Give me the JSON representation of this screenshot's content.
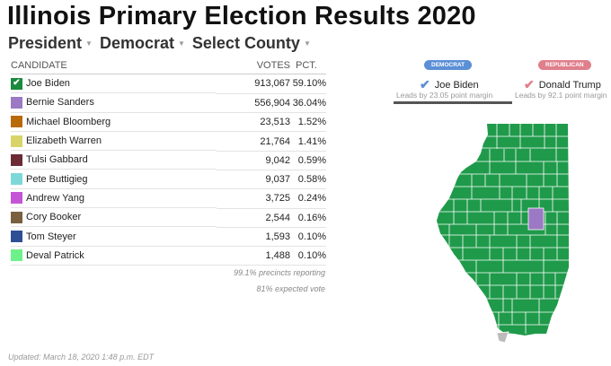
{
  "title": "Illinois Primary Election Results 2020",
  "selectors": [
    {
      "label": "President"
    },
    {
      "label": "Democrat"
    },
    {
      "label": "Select County"
    }
  ],
  "table": {
    "headers": {
      "candidate": "CANDIDATE",
      "votes": "VOTES",
      "pct": "PCT."
    },
    "rows": [
      {
        "name": "Joe Biden",
        "votes": "913,067",
        "pct": "59.10%",
        "color": "#1a8a3c",
        "winner": true
      },
      {
        "name": "Bernie Sanders",
        "votes": "556,904",
        "pct": "36.04%",
        "color": "#9b79c4"
      },
      {
        "name": "Michael Bloomberg",
        "votes": "23,513",
        "pct": "1.52%",
        "color": "#b86a0a"
      },
      {
        "name": "Elizabeth Warren",
        "votes": "21,764",
        "pct": "1.41%",
        "color": "#d8d46a"
      },
      {
        "name": "Tulsi Gabbard",
        "votes": "9,042",
        "pct": "0.59%",
        "color": "#6b2a36"
      },
      {
        "name": "Pete Buttigieg",
        "votes": "9,037",
        "pct": "0.58%",
        "color": "#7ed8d8"
      },
      {
        "name": "Andrew Yang",
        "votes": "3,725",
        "pct": "0.24%",
        "color": "#c456d6"
      },
      {
        "name": "Cory Booker",
        "votes": "2,544",
        "pct": "0.16%",
        "color": "#7b6040"
      },
      {
        "name": "Tom Steyer",
        "votes": "1,593",
        "pct": "0.10%",
        "color": "#2e4f96"
      },
      {
        "name": "Deval Patrick",
        "votes": "1,488",
        "pct": "0.10%",
        "color": "#6ef08a"
      }
    ]
  },
  "precincts": "99.1% precincts reporting",
  "expected": "81% expected vote",
  "updated": "Updated: March 18, 2020 1:48 p.m. EDT",
  "parties": {
    "democrat": {
      "badge": "DEMOCRAT",
      "leader": "Joe Biden",
      "margin": "Leads by 23.05 point margin",
      "color": "#5b8fd6"
    },
    "republican": {
      "badge": "REPUBLICAN",
      "leader": "Donald Trump",
      "margin": "Leads by 92.1 point margin",
      "color": "#e07f8c"
    }
  },
  "map": {
    "fill": "#1f9a4a",
    "sanders_county": "#9b79c4",
    "no_data": "#bbbbbb"
  }
}
